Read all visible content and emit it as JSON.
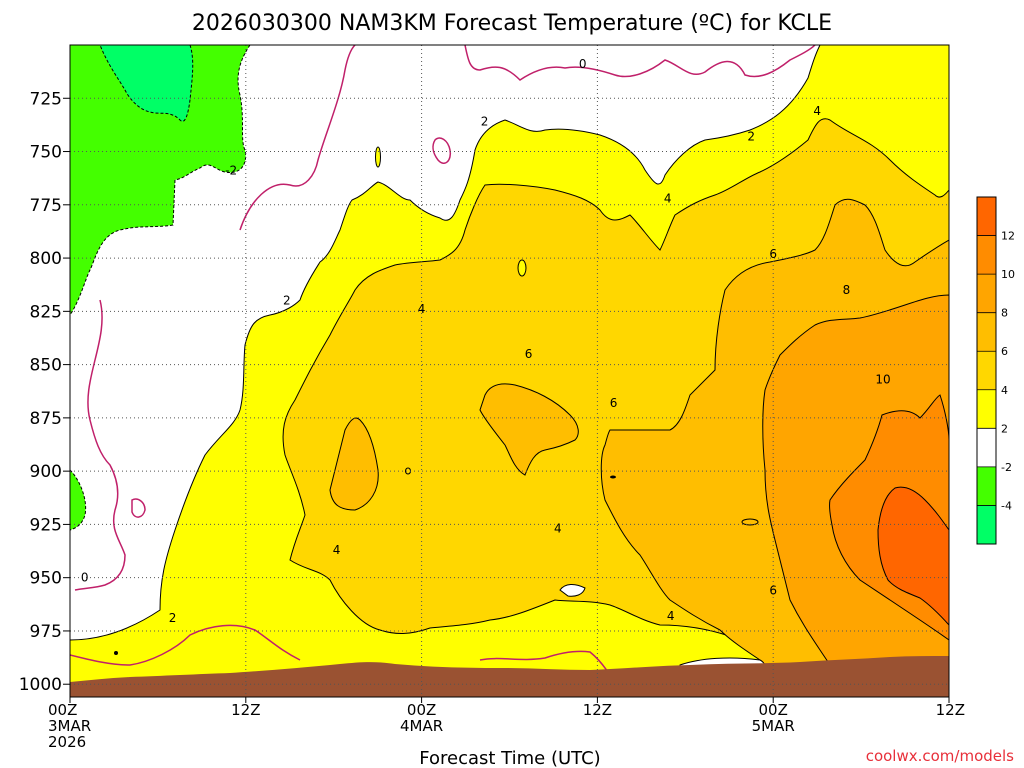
{
  "title": "2026030300 NAM3KM Forecast Temperature (ºC) for KCLE",
  "credit": "coolwx.com/models",
  "chart_data": {
    "type": "heatmap",
    "title": "2026030300 NAM3KM Forecast Temperature (ºC) for KCLE",
    "xlabel": "Forecast Time (UTC)",
    "ylabel": "",
    "x_ticks": [
      {
        "hours": 0,
        "lines": [
          "00Z",
          "3MAR",
          "2026"
        ]
      },
      {
        "hours": 12,
        "lines": [
          "12Z"
        ]
      },
      {
        "hours": 24,
        "lines": [
          "00Z",
          "4MAR"
        ]
      },
      {
        "hours": 36,
        "lines": [
          "12Z"
        ]
      },
      {
        "hours": 48,
        "lines": [
          "00Z",
          "5MAR"
        ]
      },
      {
        "hours": 60,
        "lines": [
          "12Z"
        ]
      }
    ],
    "xlim_hours": [
      0,
      60
    ],
    "y_ticks": [
      725,
      750,
      775,
      800,
      825,
      850,
      875,
      900,
      925,
      950,
      975,
      1000
    ],
    "ylim_hPa": [
      700,
      1006
    ],
    "grid": true,
    "colorbar": {
      "labels": [
        "12",
        "10",
        "8",
        "6",
        "4",
        "2",
        "-2",
        "-4"
      ],
      "bins": [
        {
          "lo": 12,
          "hi": 14,
          "color": "#ff6600"
        },
        {
          "lo": 10,
          "hi": 12,
          "color": "#ff8c00"
        },
        {
          "lo": 8,
          "hi": 10,
          "color": "#ffa500"
        },
        {
          "lo": 6,
          "hi": 8,
          "color": "#ffbe00"
        },
        {
          "lo": 4,
          "hi": 6,
          "color": "#ffd700"
        },
        {
          "lo": 2,
          "hi": 4,
          "color": "#ffff00"
        },
        {
          "lo": -2,
          "hi": 2,
          "color": "#ffffff"
        },
        {
          "lo": -4,
          "hi": -2,
          "color": "#44ff00"
        },
        {
          "lo": -6,
          "hi": -4,
          "color": "#00ff66"
        }
      ]
    },
    "contour_labels": [
      {
        "text": "0",
        "hours": 35.0,
        "hPa": 709
      },
      {
        "text": "0",
        "hours": 1.0,
        "hPa": 950
      },
      {
        "text": "-2",
        "hours": 11.0,
        "hPa": 759
      },
      {
        "text": "2",
        "hours": 28.3,
        "hPa": 736
      },
      {
        "text": "2",
        "hours": 46.5,
        "hPa": 743
      },
      {
        "text": "2",
        "hours": 14.8,
        "hPa": 820
      },
      {
        "text": "2",
        "hours": 7.0,
        "hPa": 969
      },
      {
        "text": "4",
        "hours": 51.0,
        "hPa": 731
      },
      {
        "text": "4",
        "hours": 40.8,
        "hPa": 772
      },
      {
        "text": "4",
        "hours": 24.0,
        "hPa": 824
      },
      {
        "text": "4",
        "hours": 33.3,
        "hPa": 927
      },
      {
        "text": "4",
        "hours": 18.2,
        "hPa": 937
      },
      {
        "text": "4",
        "hours": 41.0,
        "hPa": 968
      },
      {
        "text": "6",
        "hours": 31.3,
        "hPa": 845
      },
      {
        "text": "6",
        "hours": 37.1,
        "hPa": 868
      },
      {
        "text": "6",
        "hours": 48.0,
        "hPa": 798
      },
      {
        "text": "6",
        "hours": 48.0,
        "hPa": 956
      },
      {
        "text": "8",
        "hours": 53.0,
        "hPa": 815
      },
      {
        "text": "10",
        "hours": 55.5,
        "hPa": 857
      }
    ],
    "temperature_regions_C": [
      {
        "band": "-4 to -2",
        "hours": [
          0,
          12
        ],
        "hPa": [
          700,
          815
        ],
        "note": "upper left"
      },
      {
        "band": "-6 to -4",
        "hours": [
          3,
          8.5
        ],
        "hPa": [
          700,
          735
        ]
      },
      {
        "band": "-2 to 2",
        "hours": [
          0,
          60
        ],
        "hPa": [
          700,
          990
        ],
        "note": "upper layer and near-surface left"
      },
      {
        "band": "2 to 4",
        "hours": [
          6,
          60
        ],
        "hPa": [
          725,
          985
        ]
      },
      {
        "band": "4 to 6",
        "hours": [
          14,
          60
        ],
        "hPa": [
          760,
          975
        ]
      },
      {
        "band": "6 to 8",
        "hours": [
          18,
          60
        ],
        "hPa": [
          780,
          975
        ]
      },
      {
        "band": "8 to 10",
        "hours": [
          47,
          60
        ],
        "hPa": [
          818,
          985
        ]
      },
      {
        "band": "10 to 12",
        "hours": [
          52,
          60
        ],
        "hPa": [
          860,
          985
        ]
      },
      {
        "band": "12 to 14",
        "hours": [
          55,
          60
        ],
        "hPa": [
          900,
          965
        ]
      }
    ],
    "surface_terrain": "brown ground below ~985-995 hPa"
  }
}
